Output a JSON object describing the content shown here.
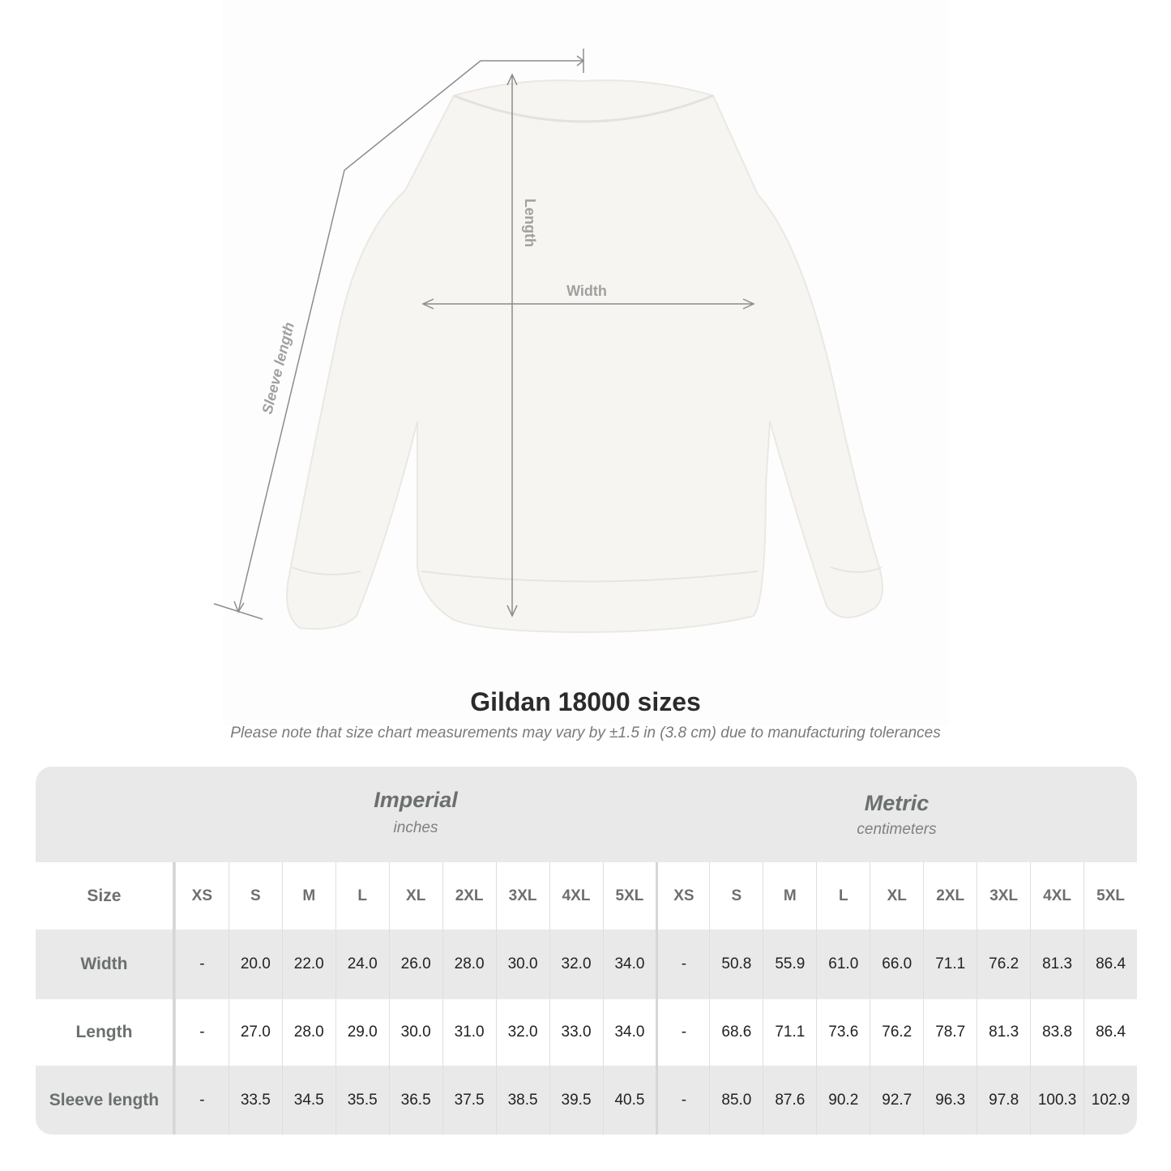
{
  "diagram": {
    "labels": {
      "length": "Length",
      "width": "Width",
      "sleeve": "Sleeve length"
    },
    "garment_color": "#f7f5f1"
  },
  "title": "Gildan 18000 sizes",
  "note": "Please note that size chart measurements may vary by ±1.5 in (3.8 cm) due to manufacturing tolerances",
  "table": {
    "imperial": {
      "name": "Imperial",
      "unit": "inches"
    },
    "metric": {
      "name": "Metric",
      "unit": "centimeters"
    },
    "size_label": "Size",
    "sizes": [
      "XS",
      "S",
      "M",
      "L",
      "XL",
      "2XL",
      "3XL",
      "4XL",
      "5XL"
    ],
    "rows": [
      {
        "label": "Width",
        "imperial": [
          "-",
          "20.0",
          "22.0",
          "24.0",
          "26.0",
          "28.0",
          "30.0",
          "32.0",
          "34.0"
        ],
        "metric": [
          "-",
          "50.8",
          "55.9",
          "61.0",
          "66.0",
          "71.1",
          "76.2",
          "81.3",
          "86.4"
        ]
      },
      {
        "label": "Length",
        "imperial": [
          "-",
          "27.0",
          "28.0",
          "29.0",
          "30.0",
          "31.0",
          "32.0",
          "33.0",
          "34.0"
        ],
        "metric": [
          "-",
          "68.6",
          "71.1",
          "73.6",
          "76.2",
          "78.7",
          "81.3",
          "83.8",
          "86.4"
        ]
      },
      {
        "label": "Sleeve length",
        "imperial": [
          "-",
          "33.5",
          "34.5",
          "35.5",
          "36.5",
          "37.5",
          "38.5",
          "39.5",
          "40.5"
        ],
        "metric": [
          "-",
          "85.0",
          "87.6",
          "90.2",
          "92.7",
          "96.3",
          "97.8",
          "100.3",
          "102.9"
        ]
      }
    ]
  }
}
